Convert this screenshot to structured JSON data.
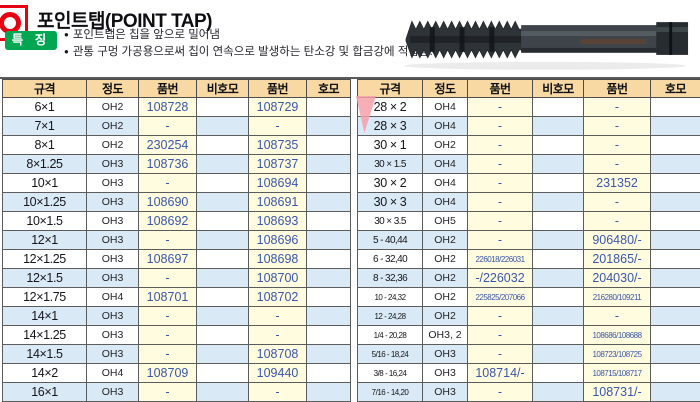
{
  "page": {
    "title": "포인트탭(POINT TAP)",
    "badge": "특 징",
    "features": [
      "포인트탭은 칩을 앞으로 밀어냄",
      "관통 구멍 가공용으로써 칩이 연속으로 발생하는 탄소강 및 합금강에 적합함."
    ]
  },
  "colors": {
    "header_bg": "#f8d9a4",
    "part_col_bg": "#fffce0",
    "stripe_blue": "#d9eaf6",
    "part_number_blue": "#3b57a8",
    "badge_green": "#00a651",
    "logo_red": "#e60012",
    "marker_pink": "#f5a0aa"
  },
  "table": {
    "columns": [
      "규격",
      "정도",
      "품번",
      "비호모",
      "품번",
      "호모"
    ],
    "left_rows": [
      {
        "spec": "6×1",
        "grade": "OH2",
        "part1": "108728",
        "nonhomo": "",
        "part2": "108729",
        "homo": ""
      },
      {
        "spec": "7×1",
        "grade": "OH2",
        "part1": "-",
        "nonhomo": "",
        "part2": "-",
        "homo": ""
      },
      {
        "spec": "8×1",
        "grade": "OH2",
        "part1": "230254",
        "nonhomo": "",
        "part2": "108735",
        "homo": ""
      },
      {
        "spec": "8×1.25",
        "grade": "OH3",
        "part1": "108736",
        "nonhomo": "",
        "part2": "108737",
        "homo": ""
      },
      {
        "spec": "10×1",
        "grade": "OH3",
        "part1": "-",
        "nonhomo": "",
        "part2": "108694",
        "homo": ""
      },
      {
        "spec": "10×1.25",
        "grade": "OH3",
        "part1": "108690",
        "nonhomo": "",
        "part2": "108691",
        "homo": ""
      },
      {
        "spec": "10×1.5",
        "grade": "OH3",
        "part1": "108692",
        "nonhomo": "",
        "part2": "108693",
        "homo": ""
      },
      {
        "spec": "12×1",
        "grade": "OH3",
        "part1": "-",
        "nonhomo": "",
        "part2": "108696",
        "homo": ""
      },
      {
        "spec": "12×1.25",
        "grade": "OH3",
        "part1": "108697",
        "nonhomo": "",
        "part2": "108698",
        "homo": ""
      },
      {
        "spec": "12×1.5",
        "grade": "OH3",
        "part1": "-",
        "nonhomo": "",
        "part2": "108700",
        "homo": ""
      },
      {
        "spec": "12×1.75",
        "grade": "OH4",
        "part1": "108701",
        "nonhomo": "",
        "part2": "108702",
        "homo": ""
      },
      {
        "spec": "14×1",
        "grade": "OH3",
        "part1": "-",
        "nonhomo": "",
        "part2": "-",
        "homo": ""
      },
      {
        "spec": "14×1.25",
        "grade": "OH3",
        "part1": "-",
        "nonhomo": "",
        "part2": "-",
        "homo": ""
      },
      {
        "spec": "14×1.5",
        "grade": "OH3",
        "part1": "-",
        "nonhomo": "",
        "part2": "108708",
        "homo": ""
      },
      {
        "spec": "14×2",
        "grade": "OH4",
        "part1": "108709",
        "nonhomo": "",
        "part2": "109440",
        "homo": ""
      },
      {
        "spec": "16×1",
        "grade": "OH3",
        "part1": "-",
        "nonhomo": "",
        "part2": "-",
        "homo": ""
      }
    ],
    "right_rows": [
      {
        "spec": "28 × 2",
        "grade": "OH4",
        "part1": "-",
        "nonhomo": "",
        "part2": "-",
        "homo": ""
      },
      {
        "spec": "28 × 3",
        "grade": "OH4",
        "part1": "-",
        "nonhomo": "",
        "part2": "-",
        "homo": ""
      },
      {
        "spec": "30 × 1",
        "grade": "OH2",
        "part1": "-",
        "nonhomo": "",
        "part2": "-",
        "homo": ""
      },
      {
        "spec": "30 × 1.5",
        "grade": "OH4",
        "part1": "-",
        "nonhomo": "",
        "part2": "-",
        "homo": ""
      },
      {
        "spec": "30 × 2",
        "grade": "OH4",
        "part1": "-",
        "nonhomo": "",
        "part2": "231352",
        "homo": ""
      },
      {
        "spec": "30 × 3",
        "grade": "OH4",
        "part1": "-",
        "nonhomo": "",
        "part2": "-",
        "homo": ""
      },
      {
        "spec": "30 × 3.5",
        "grade": "OH5",
        "part1": "-",
        "nonhomo": "",
        "part2": "-",
        "homo": ""
      },
      {
        "spec": "5 - 40,44",
        "grade": "OH2",
        "part1": "-",
        "nonhomo": "",
        "part2": "906480/-",
        "homo": ""
      },
      {
        "spec": "6 - 32,40",
        "grade": "OH2",
        "part1": "226018/226031",
        "nonhomo": "",
        "part2": "201865/-",
        "homo": ""
      },
      {
        "spec": "8 - 32,36",
        "grade": "OH2",
        "part1": "-/226032",
        "nonhomo": "",
        "part2": "204030/-",
        "homo": ""
      },
      {
        "spec": "10 - 24,32",
        "grade": "OH2",
        "part1": "225825/207066",
        "nonhomo": "",
        "part2": "216280/109211",
        "homo": ""
      },
      {
        "spec": "12 - 24,28",
        "grade": "OH2",
        "part1": "-",
        "nonhomo": "",
        "part2": "-",
        "homo": ""
      },
      {
        "spec": "1/4 - 20,28",
        "grade": "OH3, 2",
        "part1": "-",
        "nonhomo": "",
        "part2": "108686/108688",
        "homo": ""
      },
      {
        "spec": "5/16 - 18,24",
        "grade": "OH3",
        "part1": "-",
        "nonhomo": "",
        "part2": "108723/108725",
        "homo": ""
      },
      {
        "spec": "3/8 - 16,24",
        "grade": "OH3",
        "part1": "108714/-",
        "nonhomo": "",
        "part2": "108715/108717",
        "homo": ""
      },
      {
        "spec": "7/16 - 14,20",
        "grade": "OH3",
        "part1": "-",
        "nonhomo": "",
        "part2": "108731/-",
        "homo": ""
      }
    ]
  }
}
